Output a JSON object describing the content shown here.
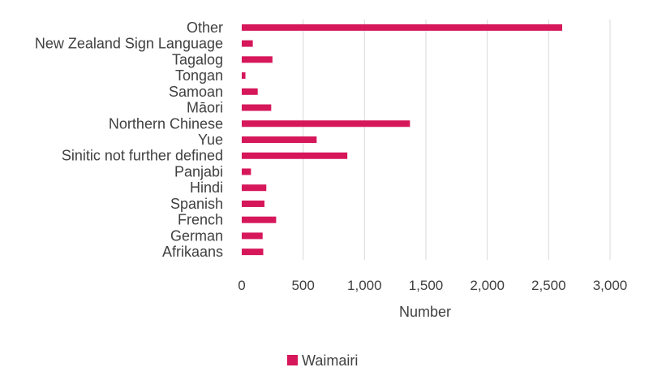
{
  "chart_data": {
    "type": "bar",
    "orientation": "horizontal",
    "categories": [
      "Other",
      "New Zealand Sign Language",
      "Tagalog",
      "Tongan",
      "Samoan",
      "Māori",
      "Northern Chinese",
      "Yue",
      "Sinitic not further defined",
      "Panjabi",
      "Hindi",
      "Spanish",
      "French",
      "German",
      "Afrikaans"
    ],
    "series": [
      {
        "name": "Waimairi",
        "color": "#d6175a",
        "values": [
          2610,
          90,
          250,
          30,
          130,
          240,
          1370,
          610,
          860,
          75,
          200,
          185,
          280,
          170,
          175
        ]
      }
    ],
    "xlabel": "Number",
    "ylabel": "",
    "xlim": [
      0,
      3000
    ],
    "xticks": [
      0,
      500,
      1000,
      1500,
      2000,
      2500,
      3000
    ],
    "xtick_labels": [
      "0",
      "500",
      "1,000",
      "1,500",
      "2,000",
      "2,500",
      "3,000"
    ],
    "grid": "vertical",
    "legend_position": "bottom"
  }
}
